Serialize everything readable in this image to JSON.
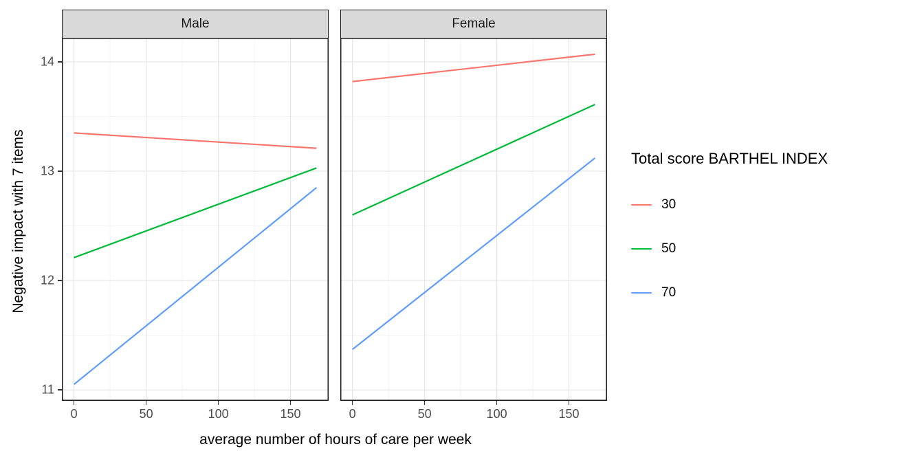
{
  "chart_data": {
    "type": "line",
    "title": "",
    "xlabel": "average number of hours of care per week",
    "ylabel": "Negative impact with 7 items",
    "xlim": [
      -8.4,
      176.4
    ],
    "ylim": [
      10.9,
      14.22
    ],
    "x_ticks": [
      0,
      50,
      100,
      150
    ],
    "y_ticks": [
      11,
      12,
      13,
      14
    ],
    "x_minor": [
      25,
      75,
      125,
      175
    ],
    "y_minor": [
      11.5,
      12.5,
      13.5
    ],
    "grid": true,
    "legend": {
      "title": "Total score BARTHEL INDEX",
      "position": "right",
      "entries": [
        {
          "label": "30",
          "color": "#F8766D"
        },
        {
          "label": "50",
          "color": "#00BA38"
        },
        {
          "label": "70",
          "color": "#619CFF"
        }
      ]
    },
    "facets": [
      {
        "label": "Male",
        "series": [
          {
            "name": "30",
            "color": "#F8766D",
            "x": [
              0,
              168
            ],
            "y": [
              13.35,
              13.21
            ]
          },
          {
            "name": "50",
            "color": "#00BA38",
            "x": [
              0,
              168
            ],
            "y": [
              12.21,
              13.03
            ]
          },
          {
            "name": "70",
            "color": "#619CFF",
            "x": [
              0,
              168
            ],
            "y": [
              11.05,
              12.85
            ]
          }
        ]
      },
      {
        "label": "Female",
        "series": [
          {
            "name": "30",
            "color": "#F8766D",
            "x": [
              0,
              168
            ],
            "y": [
              13.82,
              14.07
            ]
          },
          {
            "name": "50",
            "color": "#00BA38",
            "x": [
              0,
              168
            ],
            "y": [
              12.6,
              13.61
            ]
          },
          {
            "name": "70",
            "color": "#619CFF",
            "x": [
              0,
              168
            ],
            "y": [
              11.37,
              13.12
            ]
          }
        ]
      }
    ],
    "style": {
      "grid_major": "#E6E6E6",
      "grid_minor": "#F2F2F2",
      "panel_border": "#1A1A1A",
      "panel_bg": "#FFFFFF",
      "strip_bg": "#D9D9D9",
      "strip_text": "#1A1A1A",
      "tick_label_color": "#4D4D4D",
      "tick_mark_color": "#333333",
      "line_width": 2.2
    }
  }
}
